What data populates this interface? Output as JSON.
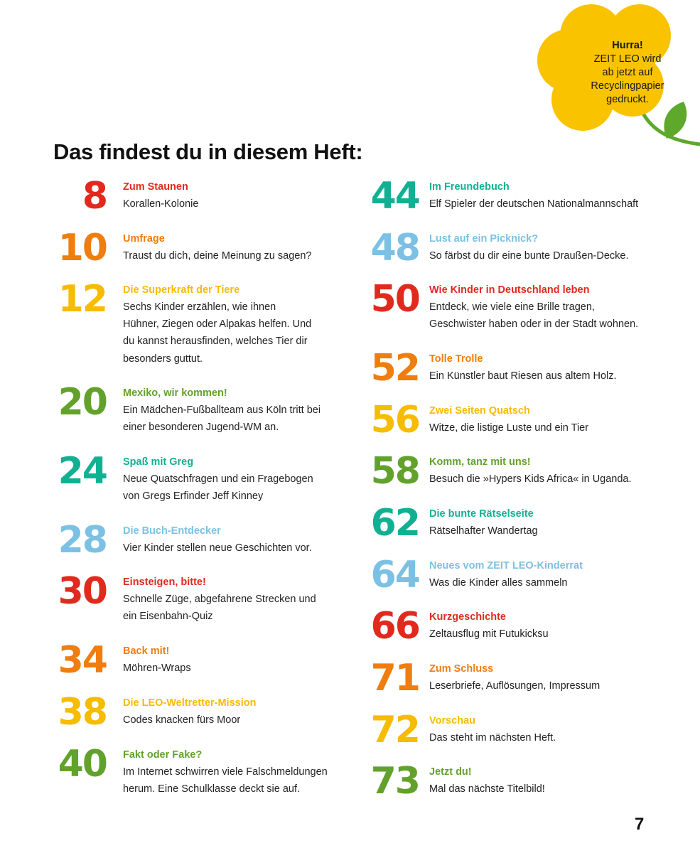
{
  "badge": {
    "lines": [
      "Hurra!",
      "ZEIT LEO wird",
      "ab jetzt auf",
      "Recyclingpapier",
      "gedruckt."
    ]
  },
  "title": "Das findest du in diesem Heft:",
  "colors": {
    "red": "#e02a1d",
    "orange": "#ef7d0f",
    "yellow": "#f7bb00",
    "green": "#62a22c",
    "teal": "#12b093",
    "blue": "#7cc1e4",
    "flower": "#f9c300",
    "leaf": "#5ea82c"
  },
  "left": [
    {
      "num": "8",
      "color": "red",
      "head": "Zum Staunen",
      "desc": [
        "Korallen-Kolonie"
      ]
    },
    {
      "num": "10",
      "color": "orange",
      "head": "Umfrage",
      "desc": [
        "Traust du dich, deine Meinung zu sagen?"
      ]
    },
    {
      "num": "12",
      "color": "yellow",
      "head": "Die Superkraft der Tiere",
      "desc": [
        "Sechs Kinder erzählen, wie ihnen",
        "Hühner, Ziegen oder Alpakas helfen. Und",
        "du kannst herausfinden, welches Tier dir",
        "besonders guttut."
      ]
    },
    {
      "num": "20",
      "color": "green",
      "head": "Mexiko, wir kommen!",
      "desc": [
        "Ein Mädchen-Fußballteam aus Köln tritt bei",
        "einer besonderen Jugend-WM an."
      ]
    },
    {
      "num": "24",
      "color": "teal",
      "head": "Spaß mit Greg",
      "desc": [
        "Neue Quatschfragen und ein Fragebogen",
        "von Gregs Erfinder Jeff Kinney"
      ]
    },
    {
      "num": "28",
      "color": "blue",
      "head": "Die Buch-Entdecker",
      "desc": [
        "Vier Kinder stellen neue Geschichten vor."
      ]
    },
    {
      "num": "30",
      "color": "red",
      "head": "Einsteigen, bitte!",
      "desc": [
        "Schnelle Züge, abgefahrene Strecken und",
        "ein Eisenbahn-Quiz"
      ]
    },
    {
      "num": "34",
      "color": "orange",
      "head": "Back mit!",
      "desc": [
        "Möhren-Wraps"
      ]
    },
    {
      "num": "38",
      "color": "yellow",
      "head": "Die LEO-Weltretter-Mission",
      "desc": [
        "Codes knacken fürs Moor"
      ]
    },
    {
      "num": "40",
      "color": "green",
      "head": "Fakt oder Fake?",
      "desc": [
        "Im Internet schwirren viele Falschmeldungen",
        "herum. Eine Schulklasse deckt sie auf."
      ]
    }
  ],
  "right": [
    {
      "num": "44",
      "color": "teal",
      "head": "Im Freundebuch",
      "desc": [
        "Elf Spieler der deutschen Nationalmannschaft"
      ]
    },
    {
      "num": "48",
      "color": "blue",
      "head": "Lust auf ein Picknick?",
      "desc": [
        "So färbst du dir eine bunte Draußen-Decke."
      ]
    },
    {
      "num": "50",
      "color": "red",
      "head": "Wie Kinder in Deutschland leben",
      "desc": [
        "Entdeck, wie viele eine Brille tragen,",
        "Geschwister haben oder in der Stadt wohnen."
      ]
    },
    {
      "num": "52",
      "color": "orange",
      "head": "Tolle Trolle",
      "desc": [
        "Ein Künstler baut Riesen aus altem Holz."
      ]
    },
    {
      "num": "56",
      "color": "yellow",
      "head": "Zwei Seiten Quatsch",
      "desc": [
        "Witze, die listige Luste und ein Tier"
      ]
    },
    {
      "num": "58",
      "color": "green",
      "head": "Komm, tanz mit uns!",
      "desc": [
        "Besuch die »Hypers Kids Africa« in Uganda."
      ]
    },
    {
      "num": "62",
      "color": "teal",
      "head": "Die bunte Rätselseite",
      "desc": [
        "Rätselhafter Wandertag"
      ]
    },
    {
      "num": "64",
      "color": "blue",
      "head": "Neues vom ZEIT LEO-Kinderrat",
      "desc": [
        "Was die Kinder alles sammeln"
      ]
    },
    {
      "num": "66",
      "color": "red",
      "head": "Kurzgeschichte",
      "desc": [
        "Zeltausflug mit Futukicksu"
      ]
    },
    {
      "num": "71",
      "color": "orange",
      "head": "Zum Schluss",
      "desc": [
        "Leserbriefe, Auflösungen, Impressum"
      ]
    },
    {
      "num": "72",
      "color": "yellow",
      "head": "Vorschau",
      "desc": [
        "Das steht im nächsten Heft."
      ]
    },
    {
      "num": "73",
      "color": "green",
      "head": "Jetzt du!",
      "desc": [
        "Mal das nächste Titelbild!"
      ]
    }
  ],
  "page_number": "7"
}
